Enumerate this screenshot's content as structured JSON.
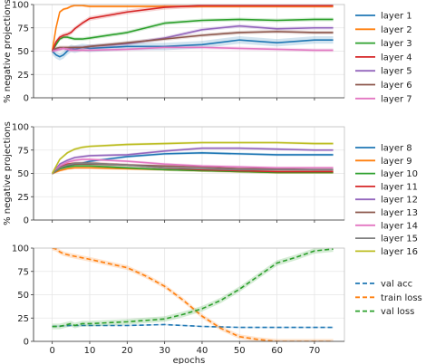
{
  "colors": {
    "layer_1": "#1f77b4",
    "layer_2": "#ff7f0e",
    "layer_3": "#2ca02c",
    "layer_4": "#d62728",
    "layer_5": "#9467bd",
    "layer_6": "#8c564b",
    "layer_7": "#e377c2",
    "layer_8": "#1f77b4",
    "layer_9": "#ff7f0e",
    "layer_10": "#2ca02c",
    "layer_11": "#d62728",
    "layer_12": "#9467bd",
    "layer_13": "#8c564b",
    "layer_14": "#e377c2",
    "layer_15": "#7f7f7f",
    "layer_16": "#bcbd22",
    "grid": "#e6e6e6",
    "axis": "#333333"
  },
  "chart_data": [
    {
      "type": "line",
      "ylabel": "% negative projections",
      "xlim": [
        -5,
        78
      ],
      "ylim": [
        0,
        100
      ],
      "yticks": [
        0,
        25,
        50,
        75,
        100
      ],
      "xticks": [
        0,
        10,
        20,
        30,
        40,
        50,
        60,
        70
      ],
      "grid": true,
      "legend_position": "right",
      "series": [
        {
          "name": "layer 1",
          "color": "#1f77b4",
          "band": 4,
          "x": [
            0,
            1,
            2,
            3,
            4,
            5,
            6,
            8,
            10,
            20,
            30,
            40,
            50,
            60,
            70,
            75
          ],
          "y": [
            50,
            46,
            44,
            46,
            50,
            53,
            52,
            54,
            53,
            55,
            55,
            57,
            62,
            59,
            62,
            62
          ]
        },
        {
          "name": "layer 2",
          "color": "#ff7f0e",
          "band": 1.5,
          "x": [
            0,
            1,
            2,
            3,
            4,
            5,
            6,
            8,
            10,
            20,
            30,
            40,
            50,
            60,
            70,
            75
          ],
          "y": [
            50,
            75,
            92,
            95,
            96,
            98,
            99,
            99,
            98,
            98,
            98,
            98,
            98,
            98,
            98,
            98
          ]
        },
        {
          "name": "layer 3",
          "color": "#2ca02c",
          "band": 2,
          "x": [
            0,
            1,
            2,
            3,
            4,
            5,
            6,
            8,
            10,
            20,
            30,
            40,
            50,
            60,
            70,
            75
          ],
          "y": [
            50,
            57,
            63,
            65,
            65,
            64,
            63,
            63,
            64,
            70,
            80,
            83,
            84,
            83,
            84,
            84
          ]
        },
        {
          "name": "layer 4",
          "color": "#d62728",
          "band": 2.5,
          "x": [
            0,
            1,
            2,
            3,
            4,
            5,
            6,
            8,
            10,
            20,
            30,
            40,
            50,
            60,
            70,
            75
          ],
          "y": [
            50,
            60,
            65,
            67,
            68,
            70,
            74,
            80,
            85,
            92,
            97,
            99,
            99,
            99,
            99,
            99
          ]
        },
        {
          "name": "layer 5",
          "color": "#9467bd",
          "band": 2,
          "x": [
            0,
            1,
            2,
            3,
            4,
            5,
            6,
            8,
            10,
            20,
            30,
            40,
            50,
            60,
            70,
            75
          ],
          "y": [
            50,
            52,
            52,
            53,
            52,
            53,
            54,
            54,
            55,
            58,
            64,
            73,
            77,
            74,
            75,
            75
          ]
        },
        {
          "name": "layer 6",
          "color": "#8c564b",
          "band": 2,
          "x": [
            0,
            1,
            2,
            3,
            4,
            5,
            6,
            8,
            10,
            20,
            30,
            40,
            50,
            60,
            70,
            75
          ],
          "y": [
            50,
            53,
            54,
            54,
            54,
            54,
            54,
            54,
            55,
            59,
            63,
            67,
            70,
            71,
            70,
            70
          ]
        },
        {
          "name": "layer 7",
          "color": "#e377c2",
          "band": 2,
          "x": [
            0,
            1,
            2,
            3,
            4,
            5,
            6,
            8,
            10,
            20,
            30,
            40,
            50,
            60,
            70,
            75
          ],
          "y": [
            50,
            51,
            52,
            53,
            52,
            51,
            51,
            51,
            51,
            52,
            54,
            54,
            53,
            52,
            51,
            51
          ]
        }
      ]
    },
    {
      "type": "line",
      "ylabel": "% negative projections",
      "xlim": [
        -5,
        78
      ],
      "ylim": [
        0,
        100
      ],
      "yticks": [
        0,
        25,
        50,
        75,
        100
      ],
      "xticks": [
        0,
        10,
        20,
        30,
        40,
        50,
        60,
        70
      ],
      "grid": true,
      "legend_position": "right",
      "series": [
        {
          "name": "layer 8",
          "color": "#1f77b4",
          "band": 1.5,
          "x": [
            0,
            2,
            4,
            6,
            8,
            10,
            20,
            30,
            40,
            50,
            60,
            70,
            75
          ],
          "y": [
            50,
            55,
            58,
            60,
            61,
            63,
            68,
            71,
            72,
            71,
            70,
            70,
            70
          ]
        },
        {
          "name": "layer 9",
          "color": "#ff7f0e",
          "band": 1.5,
          "x": [
            0,
            2,
            4,
            6,
            8,
            10,
            20,
            30,
            40,
            50,
            60,
            70,
            75
          ],
          "y": [
            50,
            53,
            55,
            56,
            56,
            56,
            55,
            54,
            53,
            52,
            51,
            51,
            51
          ]
        },
        {
          "name": "layer 10",
          "color": "#2ca02c",
          "band": 1.5,
          "x": [
            0,
            2,
            4,
            6,
            8,
            10,
            20,
            30,
            40,
            50,
            60,
            70,
            75
          ],
          "y": [
            50,
            55,
            57,
            58,
            58,
            58,
            56,
            54,
            53,
            52,
            51,
            51,
            51
          ]
        },
        {
          "name": "layer 11",
          "color": "#d62728",
          "band": 1.5,
          "x": [
            0,
            2,
            4,
            6,
            8,
            10,
            20,
            30,
            40,
            50,
            60,
            70,
            75
          ],
          "y": [
            50,
            57,
            60,
            61,
            61,
            61,
            59,
            56,
            54,
            53,
            52,
            52,
            52
          ]
        },
        {
          "name": "layer 12",
          "color": "#9467bd",
          "band": 1.5,
          "x": [
            0,
            2,
            4,
            6,
            8,
            10,
            20,
            30,
            40,
            50,
            60,
            70,
            75
          ],
          "y": [
            50,
            60,
            64,
            67,
            68,
            69,
            70,
            74,
            77,
            77,
            76,
            75,
            75
          ]
        },
        {
          "name": "layer 13",
          "color": "#8c564b",
          "band": 1.5,
          "x": [
            0,
            2,
            4,
            6,
            8,
            10,
            20,
            30,
            40,
            50,
            60,
            70,
            75
          ],
          "y": [
            50,
            56,
            59,
            60,
            60,
            60,
            59,
            58,
            57,
            55,
            55,
            54,
            54
          ]
        },
        {
          "name": "layer 14",
          "color": "#e377c2",
          "band": 1.5,
          "x": [
            0,
            2,
            4,
            6,
            8,
            10,
            20,
            30,
            40,
            50,
            60,
            70,
            75
          ],
          "y": [
            50,
            58,
            62,
            64,
            65,
            65,
            63,
            60,
            58,
            57,
            56,
            56,
            56
          ]
        },
        {
          "name": "layer 15",
          "color": "#7f7f7f",
          "band": 1.5,
          "x": [
            0,
            2,
            4,
            6,
            8,
            10,
            20,
            30,
            40,
            50,
            60,
            70,
            75
          ],
          "y": [
            50,
            56,
            59,
            61,
            61,
            61,
            59,
            56,
            55,
            54,
            54,
            54,
            54
          ]
        },
        {
          "name": "layer 16",
          "color": "#bcbd22",
          "band": 1.5,
          "x": [
            0,
            2,
            4,
            6,
            8,
            10,
            20,
            30,
            40,
            50,
            60,
            70,
            75
          ],
          "y": [
            50,
            65,
            72,
            76,
            78,
            79,
            81,
            82,
            83,
            83,
            83,
            82,
            82
          ]
        }
      ]
    },
    {
      "type": "line",
      "xlabel": "epochs",
      "xlim": [
        -5,
        78
      ],
      "ylim": [
        0,
        100
      ],
      "yticks": [
        0,
        25,
        50,
        75,
        100
      ],
      "xticks": [
        0,
        10,
        20,
        30,
        40,
        50,
        60,
        70
      ],
      "grid": true,
      "legend_position": "right",
      "series": [
        {
          "name": "val acc",
          "color": "#1f77b4",
          "band": 0.8,
          "dash": "5,3",
          "x": [
            0,
            5,
            10,
            20,
            30,
            35,
            40,
            50,
            60,
            70,
            75
          ],
          "y": [
            16,
            17,
            17,
            17,
            18,
            17,
            16,
            15,
            15,
            15,
            15
          ]
        },
        {
          "name": "train loss",
          "color": "#ff7f0e",
          "band": 2.5,
          "dash": "5,3",
          "x": [
            0,
            1,
            2,
            3,
            5,
            10,
            20,
            25,
            30,
            35,
            40,
            45,
            50,
            55,
            60,
            65,
            70,
            75
          ],
          "y": [
            100,
            99,
            96,
            94,
            92,
            88,
            79,
            70,
            59,
            44,
            27,
            14,
            5,
            2,
            0,
            0,
            0,
            0
          ]
        },
        {
          "name": "val loss",
          "color": "#2ca02c",
          "band": 3,
          "dash": "5,3",
          "x": [
            0,
            2,
            4,
            5,
            6,
            8,
            10,
            20,
            30,
            35,
            40,
            45,
            50,
            55,
            60,
            65,
            70,
            75
          ],
          "y": [
            16,
            16,
            18,
            19,
            17,
            19,
            19,
            21,
            24,
            29,
            35,
            44,
            56,
            70,
            84,
            90,
            97,
            99
          ]
        }
      ]
    }
  ]
}
